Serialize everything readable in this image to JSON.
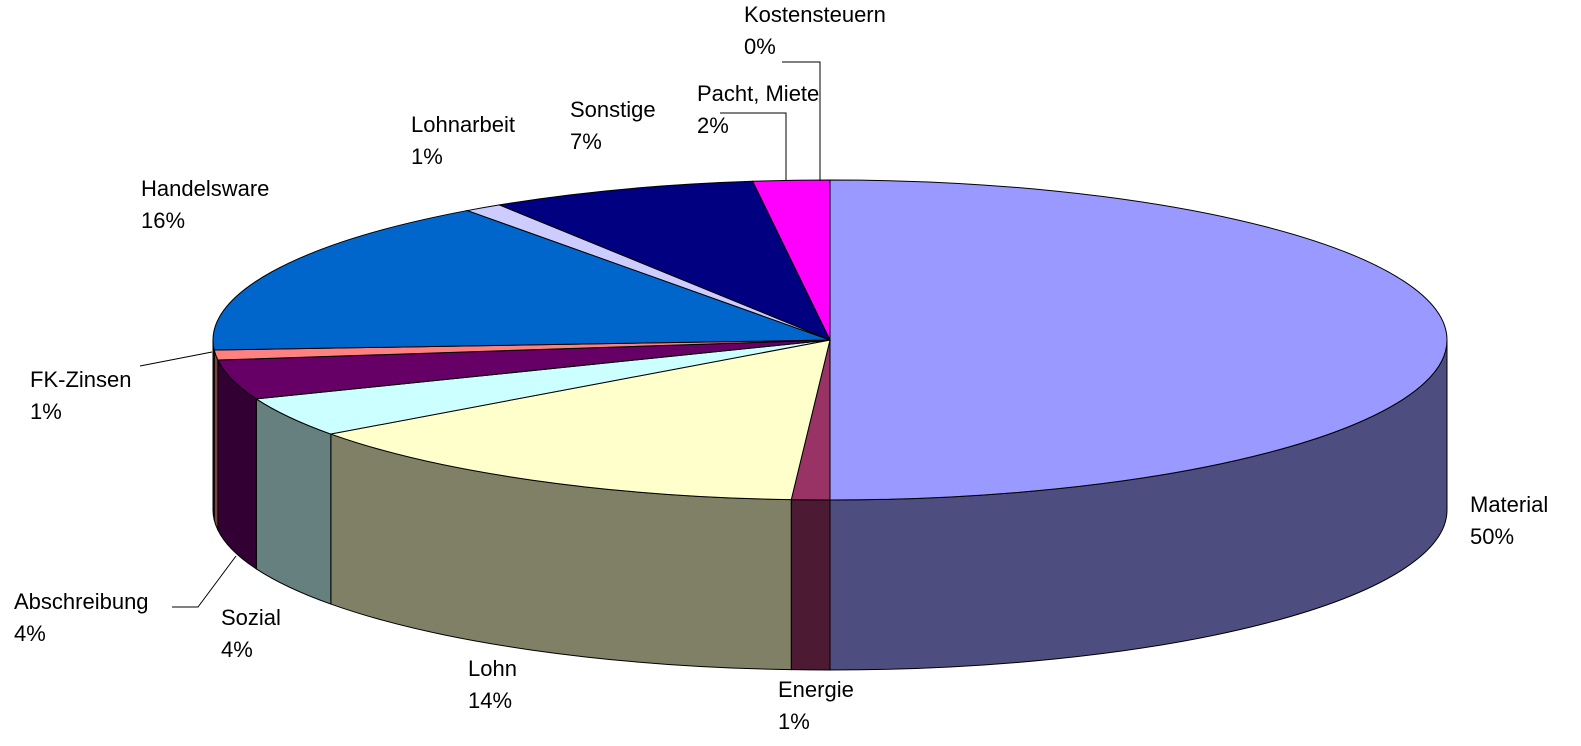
{
  "chart_data": {
    "type": "pie",
    "categories": [
      "Material",
      "Energie",
      "Lohn",
      "Sozial",
      "Abschreibung",
      "FK-Zinsen",
      "Handelsware",
      "Lohnarbeit",
      "Sonstige",
      "Pacht, Miete",
      "Kostensteuern"
    ],
    "values": [
      50,
      1,
      14,
      4,
      4,
      1,
      16,
      1,
      7,
      2,
      0
    ],
    "value_labels": [
      "50%",
      "1%",
      "14%",
      "4%",
      "4%",
      "1%",
      "16%",
      "1%",
      "7%",
      "2%",
      "0%"
    ],
    "colors": [
      "#9999ff",
      "#993366",
      "#ffffcc",
      "#ccffff",
      "#660066",
      "#ff8080",
      "#0066cc",
      "#ccccff",
      "#000080",
      "#ff00ff",
      "#ffff00"
    ]
  }
}
